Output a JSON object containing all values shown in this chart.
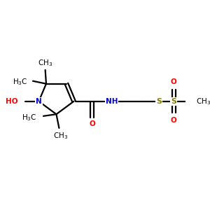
{
  "bg_color": "#ffffff",
  "bond_color": "#000000",
  "N_color": "#0000cc",
  "O_color": "#ff0000",
  "S_color": "#808000",
  "text_color": "#000000",
  "line_width": 1.6,
  "font_size": 7.5,
  "fig_size": [
    3.0,
    3.0
  ],
  "dpi": 100,
  "xlim": [
    0,
    10
  ],
  "ylim": [
    0,
    10
  ]
}
